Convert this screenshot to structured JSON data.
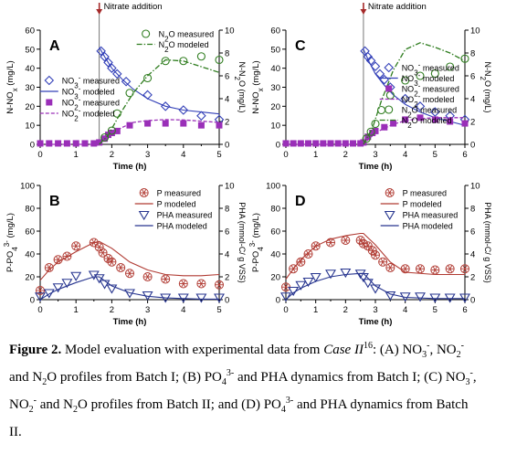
{
  "colors": {
    "no3": "#3340b8",
    "no2": "#9a2fb8",
    "n2o": "#2f7d1f",
    "p": "#b03a32",
    "pha": "#27358f",
    "arrow": "#a52a2a",
    "axis": "#000000"
  },
  "annotations": {
    "nitrate_addition": "Nitrate addition"
  },
  "chart_data": [
    {
      "panel": "A",
      "type": "scatter",
      "xlabel": "Time (h)",
      "ylabel": "N-NOx (mg/L)",
      "y2label": "N-N2O (mg/L)",
      "xlim": [
        0,
        5
      ],
      "ylim": [
        0,
        60
      ],
      "y2lim": [
        0,
        10
      ],
      "xticks": [
        0,
        1,
        2,
        3,
        4,
        5
      ],
      "yticks": [
        0,
        10,
        20,
        30,
        40,
        50,
        60
      ],
      "y2ticks": [
        0,
        2,
        4,
        6,
        8,
        10
      ],
      "nitrate_addition_time": 1.65,
      "series": [
        {
          "name": "NO3- measured",
          "kind": "diamond",
          "axis": "left",
          "x": [
            1.7,
            1.8,
            1.9,
            2.0,
            2.15,
            2.4,
            3.0,
            3.5,
            4.0,
            4.5,
            5.0
          ],
          "y": [
            49,
            46,
            43,
            40,
            37,
            33,
            26,
            20,
            18,
            15,
            13
          ]
        },
        {
          "name": "NO3- modeled",
          "kind": "line",
          "axis": "left",
          "x": [
            1.65,
            1.8,
            2.0,
            2.3,
            2.6,
            3.0,
            3.5,
            4.0,
            4.5,
            5.0
          ],
          "y": [
            51,
            46,
            40,
            34,
            29,
            24,
            20,
            18,
            17,
            16
          ]
        },
        {
          "name": "NO2- measured",
          "kind": "square",
          "axis": "left",
          "x": [
            0,
            0.25,
            0.5,
            0.75,
            1.0,
            1.25,
            1.5,
            1.65,
            1.8,
            1.9,
            2.0,
            2.15,
            2.5,
            3.0,
            3.5,
            4.0,
            4.5,
            5.0
          ],
          "y": [
            0.5,
            0.5,
            0.5,
            0.5,
            0.5,
            0.5,
            0.5,
            1,
            3,
            5,
            6,
            7,
            10,
            11,
            11,
            11,
            10,
            10
          ]
        },
        {
          "name": "NO2- modeled",
          "kind": "dashed",
          "axis": "left",
          "x": [
            0,
            1.6,
            1.65,
            1.8,
            2.0,
            2.3,
            2.6,
            3.0,
            3.5,
            4.0,
            4.5,
            5.0
          ],
          "y": [
            0,
            0,
            0.5,
            3,
            6,
            9,
            11.5,
            12.5,
            13,
            12.8,
            12.2,
            11.5
          ]
        },
        {
          "name": "N2O measured",
          "kind": "circle",
          "axis": "right",
          "x": [
            1.8,
            2.0,
            2.15,
            2.5,
            3.0,
            3.5,
            4.0,
            4.5,
            5.0
          ],
          "y": [
            0.6,
            1.2,
            2.7,
            4.5,
            5.8,
            7.3,
            7.3,
            7.7,
            7.4
          ]
        },
        {
          "name": "N2O modeled",
          "kind": "dashdot",
          "axis": "right",
          "x": [
            1.65,
            1.9,
            2.2,
            2.6,
            3.0,
            3.5,
            4.0,
            4.5,
            5.0
          ],
          "y": [
            0,
            0.8,
            2.5,
            4.5,
            6.0,
            7.4,
            7.3,
            6.8,
            6.3
          ]
        }
      ]
    },
    {
      "panel": "B",
      "type": "scatter",
      "xlabel": "Time (h)",
      "ylabel": "P-PO4 3- (mg/L)",
      "y2label": "PHA (mmol-C/ g VSS)",
      "xlim": [
        0,
        5
      ],
      "ylim": [
        0,
        100
      ],
      "y2lim": [
        0,
        10
      ],
      "xticks": [
        0,
        1,
        2,
        3,
        4,
        5
      ],
      "yticks": [
        0,
        20,
        40,
        60,
        80,
        100
      ],
      "y2ticks": [
        0,
        2,
        4,
        6,
        8,
        10
      ],
      "series": [
        {
          "name": "P measured",
          "kind": "asterisk",
          "axis": "left",
          "x": [
            0,
            0.25,
            0.5,
            0.75,
            1.0,
            1.5,
            1.65,
            1.75,
            1.9,
            2.0,
            2.25,
            2.5,
            3.0,
            3.5,
            4.0,
            4.5,
            5.0
          ],
          "y": [
            8,
            28,
            35,
            38,
            47,
            50,
            46,
            41,
            36,
            33,
            28,
            23,
            20,
            18,
            14,
            14,
            13
          ]
        },
        {
          "name": "P modeled",
          "kind": "line",
          "axis": "left",
          "x": [
            0,
            0.25,
            0.5,
            1.0,
            1.5,
            1.65,
            2.0,
            2.5,
            3.0,
            3.5,
            4.0,
            4.5,
            5.0
          ],
          "y": [
            17,
            26,
            33,
            42,
            50,
            51,
            45,
            33,
            26,
            22,
            21,
            21,
            22
          ]
        },
        {
          "name": "PHA measured",
          "kind": "triangle",
          "axis": "right",
          "x": [
            0,
            0.25,
            0.5,
            0.75,
            1.0,
            1.5,
            1.65,
            1.8,
            2.0,
            2.5,
            3.0,
            3.5,
            4.0,
            4.5,
            5.0
          ],
          "y": [
            0.3,
            0.6,
            1.1,
            1.5,
            2.1,
            2.2,
            1.9,
            1.4,
            1.0,
            0.6,
            0.4,
            0.2,
            0.2,
            0.2,
            0.2
          ]
        },
        {
          "name": "PHA modeled",
          "kind": "line",
          "axis": "right",
          "x": [
            0,
            0.25,
            0.5,
            1.0,
            1.5,
            1.65,
            2.0,
            2.5,
            3.0,
            3.5,
            4.0,
            4.5,
            5.0
          ],
          "y": [
            0,
            0.5,
            0.9,
            1.5,
            2.0,
            2.0,
            1.2,
            0.6,
            0.3,
            0.15,
            0.1,
            0.05,
            0.05
          ]
        }
      ]
    },
    {
      "panel": "C",
      "type": "scatter",
      "xlabel": "Time (h)",
      "ylabel": "N-NOx (mg/L)",
      "y2label": "N-N2O (mg/L)",
      "xlim": [
        0,
        6
      ],
      "ylim": [
        0,
        60
      ],
      "y2lim": [
        0,
        10
      ],
      "xticks": [
        0,
        1,
        2,
        3,
        4,
        5,
        6
      ],
      "yticks": [
        0,
        10,
        20,
        30,
        40,
        50,
        60
      ],
      "y2ticks": [
        0,
        2,
        4,
        6,
        8,
        10
      ],
      "nitrate_addition_time": 2.6,
      "series": [
        {
          "name": "NO3- measured",
          "kind": "diamond",
          "axis": "left",
          "x": [
            2.65,
            2.75,
            2.85,
            3.0,
            3.15,
            3.3,
            3.5,
            4.0,
            4.5,
            5.0,
            5.5,
            6.0
          ],
          "y": [
            49,
            46,
            44,
            41,
            37,
            34,
            30,
            24,
            20,
            17,
            15,
            13
          ]
        },
        {
          "name": "NO3- modeled",
          "kind": "line",
          "axis": "left",
          "x": [
            2.6,
            2.8,
            3.0,
            3.3,
            3.6,
            4.0,
            4.5,
            5.0,
            5.5,
            6.0
          ],
          "y": [
            50,
            43,
            37,
            31,
            26,
            21,
            17,
            14,
            12,
            10
          ]
        },
        {
          "name": "NO2- measured",
          "kind": "square",
          "axis": "left",
          "x": [
            0,
            0.25,
            0.5,
            0.75,
            1.0,
            1.25,
            1.5,
            1.75,
            2.0,
            2.25,
            2.5,
            2.6,
            2.75,
            2.9,
            3.0,
            3.3,
            3.6,
            4.0,
            4.5,
            5.0,
            5.5,
            6.0
          ],
          "y": [
            0.5,
            0.5,
            0.5,
            0.5,
            0.5,
            0.5,
            0.5,
            0.5,
            0.5,
            0.5,
            0.5,
            1,
            4,
            6,
            7,
            9,
            11,
            13,
            14,
            13,
            12,
            11
          ]
        },
        {
          "name": "NO2- modeled",
          "kind": "dashed",
          "axis": "left",
          "x": [
            0,
            2.55,
            2.6,
            2.8,
            3.0,
            3.3,
            3.6,
            4.0,
            4.5,
            5.0,
            5.5,
            6.0
          ],
          "y": [
            0,
            0,
            0.5,
            3,
            6,
            8.5,
            10.5,
            12.5,
            13.5,
            14,
            14,
            14
          ]
        },
        {
          "name": "N2O measured",
          "kind": "circle",
          "axis": "right",
          "x": [
            2.7,
            2.85,
            3.0,
            3.2,
            3.5,
            4.0,
            4.5,
            5.0,
            5.5,
            6.0
          ],
          "y": [
            0.5,
            1.1,
            1.8,
            3.0,
            4.3,
            5.6,
            6.0,
            6.2,
            6.8,
            7.5
          ]
        },
        {
          "name": "N2O modeled",
          "kind": "dashdot",
          "axis": "right",
          "x": [
            2.6,
            2.9,
            3.2,
            3.6,
            4.0,
            4.5,
            5.0,
            5.5,
            6.0
          ],
          "y": [
            0,
            1.4,
            3.8,
            6.5,
            8.3,
            8.9,
            8.5,
            8.0,
            7.3
          ]
        }
      ]
    },
    {
      "panel": "D",
      "type": "scatter",
      "xlabel": "Time (h)",
      "ylabel": "P-PO4 3- (mg/L)",
      "y2label": "PHA (mmol-C/ g VSS)",
      "xlim": [
        0,
        6
      ],
      "ylim": [
        0,
        100
      ],
      "y2lim": [
        0,
        10
      ],
      "xticks": [
        0,
        1,
        2,
        3,
        4,
        5,
        6
      ],
      "yticks": [
        0,
        20,
        40,
        60,
        80,
        100
      ],
      "y2ticks": [
        0,
        2,
        4,
        6,
        8,
        10
      ],
      "series": [
        {
          "name": "P measured",
          "kind": "asterisk",
          "axis": "left",
          "x": [
            0,
            0.25,
            0.5,
            0.75,
            1.0,
            1.5,
            2.0,
            2.5,
            2.6,
            2.75,
            2.9,
            3.0,
            3.25,
            3.5,
            4.0,
            4.5,
            5.0,
            5.5,
            6.0
          ],
          "y": [
            11,
            27,
            33,
            40,
            47,
            50,
            52,
            52,
            49,
            47,
            43,
            39,
            33,
            28,
            27,
            27,
            26,
            27,
            27
          ]
        },
        {
          "name": "P modeled",
          "kind": "line",
          "axis": "left",
          "x": [
            0,
            0.25,
            0.5,
            1.0,
            1.5,
            2.0,
            2.5,
            2.6,
            3.0,
            3.5,
            4.0,
            5.0,
            6.0
          ],
          "y": [
            18,
            27,
            35,
            47,
            53,
            56,
            58,
            58,
            48,
            33,
            24,
            22,
            22
          ]
        },
        {
          "name": "PHA measured",
          "kind": "triangle",
          "axis": "right",
          "x": [
            0,
            0.25,
            0.5,
            0.75,
            1.0,
            1.5,
            2.0,
            2.5,
            2.6,
            2.75,
            3.0,
            3.5,
            4.0,
            4.5,
            5.0,
            5.5,
            6.0
          ],
          "y": [
            0.3,
            0.8,
            1.3,
            1.6,
            2.0,
            2.3,
            2.4,
            2.3,
            2.0,
            1.5,
            1.0,
            0.4,
            0.3,
            0.3,
            0.2,
            0.2,
            0.2
          ]
        },
        {
          "name": "PHA modeled",
          "kind": "line",
          "axis": "right",
          "x": [
            0,
            0.25,
            0.5,
            1.0,
            1.5,
            2.0,
            2.5,
            2.6,
            3.0,
            3.5,
            4.0,
            5.0,
            6.0
          ],
          "y": [
            0,
            0.6,
            1.0,
            1.6,
            2.0,
            2.2,
            2.3,
            2.3,
            1.2,
            0.5,
            0.2,
            0.1,
            0.1
          ]
        }
      ]
    }
  ],
  "caption": {
    "label": "Figure 2.",
    "t1": " Model evaluation with experimental data from ",
    "case_name": "Case II",
    "ref": "16",
    "t2": ": (A) NO",
    "s3": "3",
    "sup_minus": "-",
    "t3": ", NO",
    "s2": "2",
    "t4": "and N",
    "t5": "O profiles from Batch I; (B) PO",
    "s4": "4",
    "sup3minus": "3-",
    "t6": " and PHA dynamics from Batch I; (C) NO",
    "t7": ",",
    "t8": "NO",
    "t9": " and N",
    "t10": "O profiles from Batch II; and (D) PO",
    "t11": " and PHA dynamics from Batch",
    "t12": "II."
  }
}
